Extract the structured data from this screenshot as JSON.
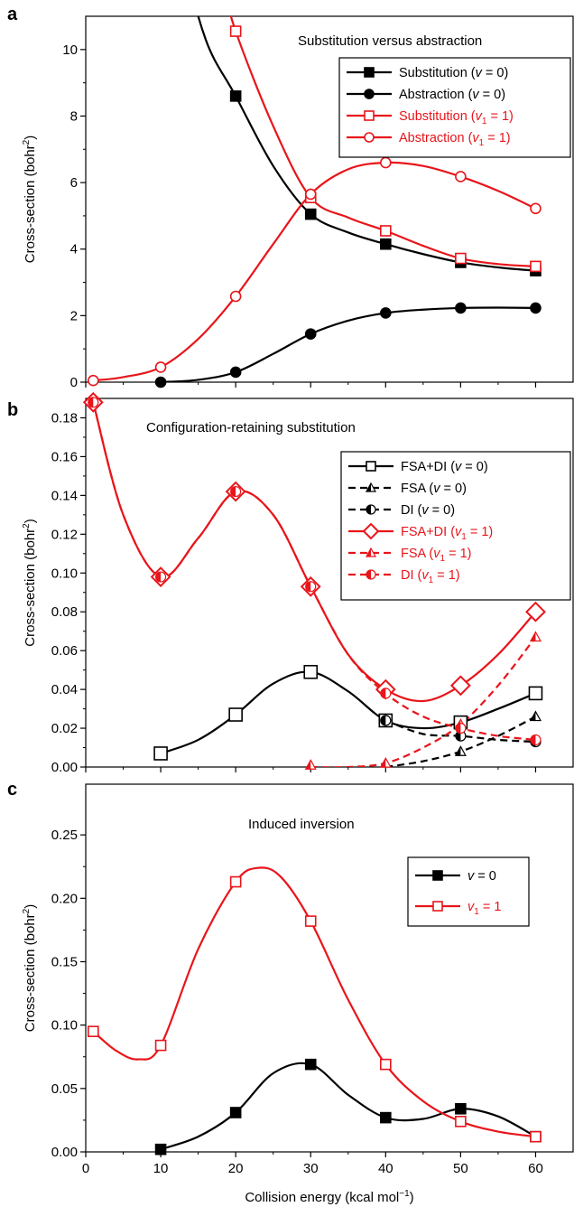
{
  "xlabel": "Collision energy (kcal mol",
  "xlabel_sup": "−1",
  "xlabel_end": ")",
  "chart_data": [
    {
      "panel": "a",
      "type": "line",
      "annotation": "Substitution versus abstraction",
      "ylabel": "Cross-section (bohr",
      "ylabel_sup": "2",
      "ylabel_end": ")",
      "xlim": [
        0,
        65
      ],
      "ylim": [
        0,
        11
      ],
      "xticks": [
        0,
        10,
        20,
        30,
        40,
        50,
        60
      ],
      "yticks": [
        0,
        2,
        4,
        6,
        8,
        10
      ],
      "ytick_labels": [
        "0",
        "2",
        "4",
        "6",
        "8",
        "10"
      ],
      "legend_position": "top-right",
      "series": [
        {
          "legend": [
            "Substitution (",
            "v",
            " = 0)"
          ],
          "sub": "",
          "color": "#000000",
          "marker": "square",
          "filled": true,
          "dash": "",
          "x": [
            20,
            30,
            40,
            50,
            60
          ],
          "y": [
            8.6,
            5.05,
            4.15,
            3.6,
            3.35
          ],
          "curve_x": [
            10,
            13,
            16,
            20,
            25,
            30,
            35,
            40,
            45,
            50,
            55,
            60
          ],
          "curve_y": [
            17.5,
            13.0,
            10.3,
            8.6,
            6.5,
            5.05,
            4.5,
            4.15,
            3.85,
            3.6,
            3.45,
            3.35
          ]
        },
        {
          "legend": [
            "Abstraction (",
            "v",
            " = 0)"
          ],
          "sub": "",
          "color": "#000000",
          "marker": "circle",
          "filled": true,
          "dash": "",
          "x": [
            10,
            20,
            30,
            40,
            50,
            60
          ],
          "y": [
            0.0,
            0.3,
            1.45,
            2.08,
            2.23,
            2.23
          ],
          "curve_x": [
            10,
            15,
            20,
            25,
            30,
            35,
            40,
            45,
            50,
            55,
            60
          ],
          "curve_y": [
            0.0,
            0.07,
            0.3,
            0.85,
            1.45,
            1.85,
            2.08,
            2.18,
            2.23,
            2.24,
            2.23
          ]
        },
        {
          "legend": [
            "Substitution (",
            "v",
            " = 1)"
          ],
          "sub": "1",
          "color": "#e8151b",
          "marker": "square",
          "filled": false,
          "dash": "",
          "x": [
            20,
            30,
            40,
            50,
            60
          ],
          "y": [
            10.55,
            5.55,
            4.55,
            3.72,
            3.48
          ],
          "curve_x": [
            17,
            18.5,
            20,
            25,
            30,
            35,
            40,
            45,
            50,
            55,
            60
          ],
          "curve_y": [
            13.5,
            11.9,
            10.55,
            7.7,
            5.55,
            4.95,
            4.55,
            4.1,
            3.72,
            3.55,
            3.48
          ]
        },
        {
          "legend": [
            "Abstraction (",
            "v",
            " = 1)"
          ],
          "sub": "1",
          "color": "#e8151b",
          "marker": "circle",
          "filled": false,
          "dash": "",
          "x": [
            1,
            10,
            20,
            30,
            40,
            50,
            60
          ],
          "y": [
            0.05,
            0.45,
            2.58,
            5.65,
            6.6,
            6.18,
            5.22
          ],
          "curve_x": [
            1,
            5,
            10,
            15,
            20,
            25,
            30,
            35,
            40,
            45,
            50,
            55,
            60
          ],
          "curve_y": [
            0.05,
            0.15,
            0.45,
            1.3,
            2.58,
            4.15,
            5.65,
            6.4,
            6.6,
            6.5,
            6.18,
            5.75,
            5.22
          ]
        }
      ]
    },
    {
      "panel": "b",
      "type": "line",
      "annotation": "Configuration-retaining substitution",
      "ylabel": "Cross-section (bohr",
      "ylabel_sup": "2",
      "ylabel_end": ")",
      "xlim": [
        0,
        65
      ],
      "ylim": [
        0,
        0.19
      ],
      "xticks": [
        0,
        10,
        20,
        30,
        40,
        50,
        60
      ],
      "yticks": [
        0,
        0.02,
        0.04,
        0.06,
        0.08,
        0.1,
        0.12,
        0.14,
        0.16,
        0.18
      ],
      "ytick_labels": [
        "0.00",
        "0.02",
        "0.04",
        "0.06",
        "0.08",
        "0.10",
        "0.12",
        "0.14",
        "0.16",
        "0.18"
      ],
      "legend_position": "right",
      "series": [
        {
          "legend": [
            "FSA+DI (",
            "v",
            " = 0)"
          ],
          "sub": "",
          "color": "#000000",
          "marker": "square",
          "filled": false,
          "dash": "",
          "x": [
            10,
            20,
            30,
            40,
            50,
            60
          ],
          "y": [
            0.007,
            0.027,
            0.049,
            0.024,
            0.023,
            0.038
          ],
          "curve_x": [
            10,
            15,
            20,
            25,
            30,
            35,
            40,
            45,
            50,
            55,
            60
          ],
          "curve_y": [
            0.007,
            0.014,
            0.027,
            0.043,
            0.049,
            0.039,
            0.024,
            0.02,
            0.023,
            0.03,
            0.038
          ]
        },
        {
          "legend": [
            "FSA (",
            "v",
            " = 0)"
          ],
          "sub": "",
          "color": "#000000",
          "marker": "triangle-half",
          "filled": false,
          "dash": "8 5",
          "x": [
            50,
            60
          ],
          "y": [
            0.008,
            0.026
          ],
          "curve_x": [
            40,
            45,
            50,
            55,
            60
          ],
          "curve_y": [
            0.0,
            0.003,
            0.008,
            0.016,
            0.026
          ]
        },
        {
          "legend": [
            "DI (",
            "v",
            " = 0)"
          ],
          "sub": "",
          "color": "#000000",
          "marker": "circle-half",
          "filled": false,
          "dash": "8 5",
          "x": [
            40,
            50,
            60
          ],
          "y": [
            0.024,
            0.016,
            0.013
          ],
          "curve_x": [
            40,
            45,
            50,
            55,
            60
          ],
          "curve_y": [
            0.024,
            0.017,
            0.016,
            0.014,
            0.013
          ]
        },
        {
          "legend": [
            "FSA+DI (",
            "v",
            " = 1)"
          ],
          "sub": "1",
          "color": "#e8151b",
          "marker": "diamond",
          "filled": false,
          "dash": "",
          "x": [
            1,
            10,
            20,
            30,
            40,
            50,
            60
          ],
          "y": [
            0.188,
            0.098,
            0.142,
            0.093,
            0.04,
            0.042,
            0.08
          ],
          "curve_x": [
            1,
            5,
            10,
            15,
            20,
            25,
            30,
            35,
            40,
            45,
            50,
            55,
            60
          ],
          "curve_y": [
            0.188,
            0.13,
            0.098,
            0.118,
            0.142,
            0.13,
            0.093,
            0.058,
            0.04,
            0.034,
            0.042,
            0.058,
            0.08
          ]
        },
        {
          "legend": [
            "FSA (",
            "v",
            " = 1)"
          ],
          "sub": "1",
          "color": "#e8151b",
          "marker": "triangle-half",
          "filled": false,
          "dash": "8 5",
          "x": [
            30,
            40,
            50,
            60
          ],
          "y": [
            0.001,
            0.002,
            0.022,
            0.067
          ],
          "curve_x": [
            30,
            35,
            40,
            45,
            50,
            55,
            60
          ],
          "curve_y": [
            0.0,
            0.0,
            0.002,
            0.01,
            0.022,
            0.042,
            0.067
          ]
        },
        {
          "legend": [
            "DI (",
            "v",
            " = 1)"
          ],
          "sub": "1",
          "color": "#e8151b",
          "marker": "circle-half",
          "filled": false,
          "dash": "8 5",
          "x": [
            1,
            10,
            20,
            30,
            40,
            50,
            60
          ],
          "y": [
            0.188,
            0.098,
            0.142,
            0.093,
            0.038,
            0.02,
            0.014
          ],
          "curve_x": [
            1,
            5,
            10,
            15,
            20,
            25,
            30,
            35,
            40,
            45,
            50,
            55,
            60
          ],
          "curve_y": [
            0.188,
            0.13,
            0.098,
            0.118,
            0.142,
            0.13,
            0.093,
            0.058,
            0.038,
            0.026,
            0.02,
            0.016,
            0.014
          ]
        }
      ]
    },
    {
      "panel": "c",
      "type": "line",
      "annotation": "Induced inversion",
      "ylabel": "Cross-section (bohr",
      "ylabel_sup": "2",
      "ylabel_end": ")",
      "xlim": [
        0,
        65
      ],
      "ylim": [
        0,
        0.29
      ],
      "xticks": [
        0,
        10,
        20,
        30,
        40,
        50,
        60
      ],
      "xtick_labels": [
        "0",
        "10",
        "20",
        "30",
        "40",
        "50",
        "60"
      ],
      "yticks": [
        0,
        0.05,
        0.1,
        0.15,
        0.2,
        0.25
      ],
      "ytick_labels": [
        "0.00",
        "0.05",
        "0.10",
        "0.15",
        "0.20",
        "0.25"
      ],
      "legend_position": "right",
      "series": [
        {
          "legend": [
            "",
            "v",
            " = 0"
          ],
          "sub": "",
          "color": "#000000",
          "marker": "square",
          "filled": true,
          "dash": "",
          "x": [
            10,
            20,
            30,
            40,
            50,
            60
          ],
          "y": [
            0.002,
            0.031,
            0.069,
            0.027,
            0.034,
            0.012
          ],
          "curve_x": [
            10,
            15,
            20,
            25,
            30,
            35,
            40,
            45,
            50,
            55,
            60
          ],
          "curve_y": [
            0.002,
            0.012,
            0.031,
            0.062,
            0.069,
            0.045,
            0.027,
            0.026,
            0.034,
            0.028,
            0.012
          ]
        },
        {
          "legend": [
            "",
            "v",
            " = 1"
          ],
          "sub": "1",
          "color": "#e8151b",
          "marker": "square",
          "filled": false,
          "dash": "",
          "x": [
            1,
            10,
            20,
            30,
            40,
            50,
            60
          ],
          "y": [
            0.095,
            0.084,
            0.213,
            0.182,
            0.069,
            0.024,
            0.012
          ],
          "curve_x": [
            1,
            4,
            7,
            10,
            15,
            20,
            23,
            26,
            30,
            35,
            40,
            45,
            50,
            55,
            60
          ],
          "curve_y": [
            0.095,
            0.08,
            0.073,
            0.084,
            0.16,
            0.213,
            0.224,
            0.217,
            0.182,
            0.12,
            0.069,
            0.04,
            0.024,
            0.016,
            0.012
          ]
        }
      ]
    }
  ]
}
